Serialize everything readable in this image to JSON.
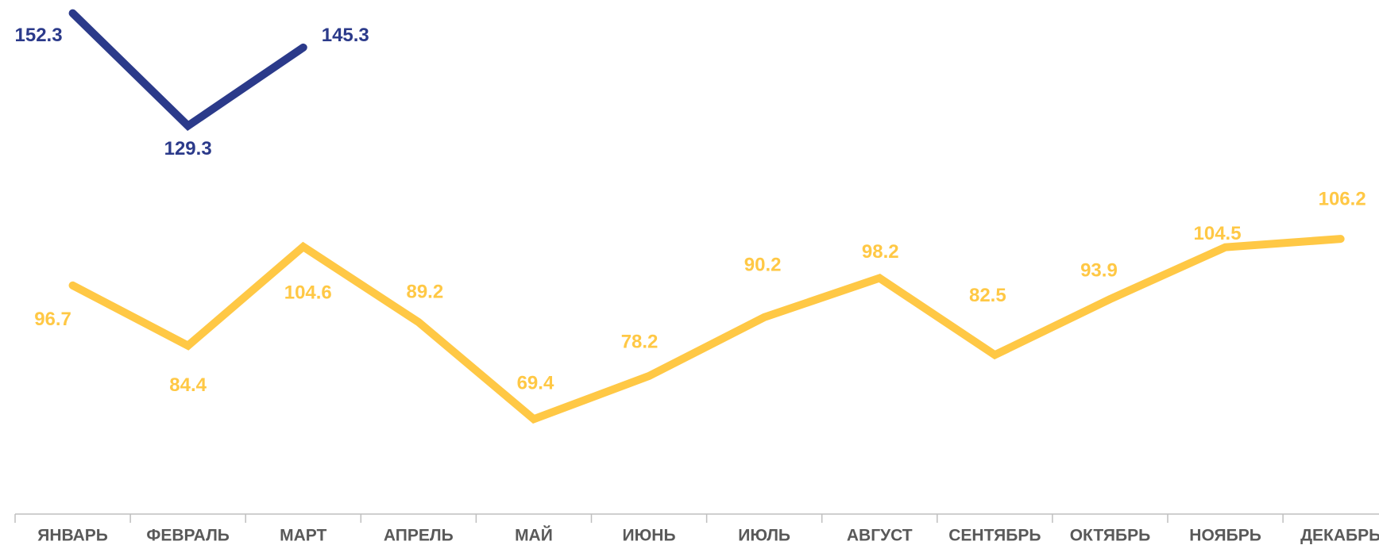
{
  "chart_data": {
    "type": "line",
    "categories": [
      "ЯНВАРЬ",
      "ФЕВРАЛЬ",
      "МАРТ",
      "АПРЕЛЬ",
      "МАЙ",
      "ИЮНЬ",
      "ИЮЛЬ",
      "АВГУСТ",
      "СЕНТЯБРЬ",
      "ОКТЯБРЬ",
      "НОЯБРЬ",
      "ДЕКАБРЬ"
    ],
    "series": [
      {
        "color": "#FFC845",
        "values": [
          96.7,
          84.4,
          104.6,
          89.2,
          69.4,
          78.2,
          90.2,
          98.2,
          82.5,
          93.9,
          104.5,
          106.2
        ]
      },
      {
        "color": "#2B3A8A",
        "values": [
          152.3,
          129.3,
          145.3,
          null,
          null,
          null,
          null,
          null,
          null,
          null,
          null,
          null
        ]
      }
    ],
    "ylim": [
      50,
      155
    ]
  }
}
